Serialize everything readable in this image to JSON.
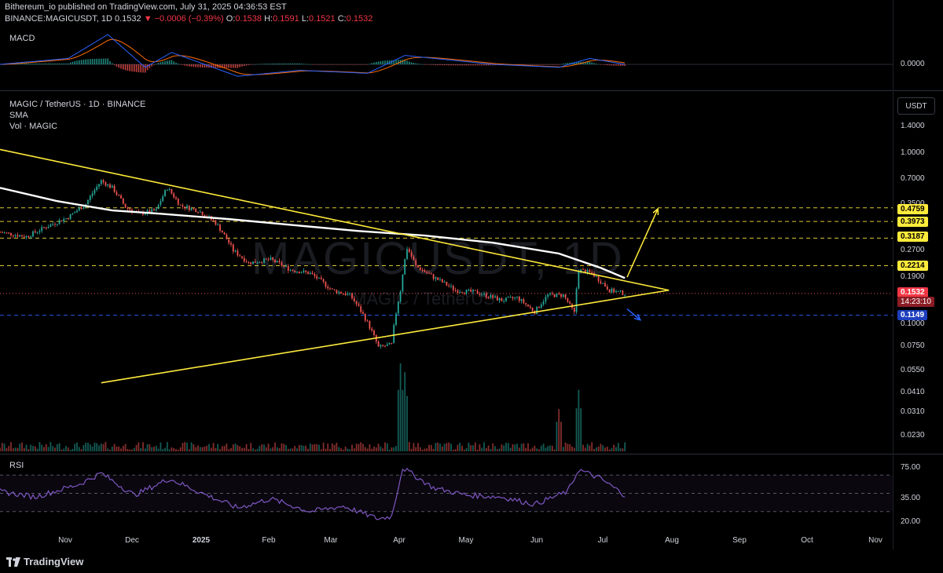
{
  "header": {
    "publish_line": "Bithereum_io published on TradingView.com, July 31, 2025 04:36:53 EST",
    "symbol_line_prefix": "BINANCE:MAGICUSDT, 1D 0.1532",
    "symbol_line_change": "▼ −0.0006 (−0.39%)",
    "ohlc_o_label": " O:",
    "ohlc_o": "0.1538",
    "ohlc_h_label": " H:",
    "ohlc_h": "0.1591",
    "ohlc_l_label": " L:",
    "ohlc_l": "0.1521",
    "ohlc_c_label": " C:",
    "ohlc_c": "0.1532"
  },
  "panes": {
    "macd_label": "MACD",
    "macd_zero": "0.0000",
    "main_title": "MAGIC / TetherUS · 1D · BINANCE",
    "main_sma": "SMA",
    "main_vol": "Vol · MAGIC",
    "currency_button": "USDT",
    "rsi_label": "RSI",
    "watermark_symbol": "MAGICUSDT, 1D",
    "watermark_name": "MAGIC / TetherUS"
  },
  "price_axis": [
    "1.4000",
    "1.0000",
    "0.7000",
    "0.3500",
    "0.2700",
    "0.1900",
    "0.1000",
    "0.0750",
    "0.0550",
    "0.0410",
    "0.0310",
    "0.0230"
  ],
  "rsi_axis": [
    "75.00",
    "35.00",
    "20.00"
  ],
  "price_tags": {
    "level_1": "0.4759",
    "level_2": "0.3973",
    "level_3": "0.3187",
    "level_4": "0.2214",
    "current": "0.1532",
    "countdown": "14:23:10",
    "support": "0.1149"
  },
  "time_axis": [
    "Nov",
    "Dec",
    "2025",
    "Feb",
    "Mar",
    "Apr",
    "May",
    "Jun",
    "Jul",
    "Aug",
    "Sep",
    "Oct",
    "Nov"
  ],
  "footer": {
    "brand": "TradingView"
  },
  "colors": {
    "bull": "#26a69a",
    "bear": "#ef5350",
    "trendline": "#ffeb3b",
    "sma": "#ffffff",
    "macd_line": "#2962ff",
    "signal_line": "#ff6d00",
    "rsi_line": "#7e57c2",
    "support_line": "#2962ff"
  },
  "chart_data": {
    "type": "candlestick",
    "symbol": "MAGICUSDT",
    "timeframe": "1D",
    "y_scale": "log",
    "ylim": [
      0.02,
      1.6
    ],
    "x_range": [
      "2024-10-20",
      "2025-11-15"
    ],
    "price_path": [
      [
        "2024-10-20",
        0.345
      ],
      [
        "2024-11-01",
        0.325
      ],
      [
        "2024-11-10",
        0.37
      ],
      [
        "2024-11-20",
        0.42
      ],
      [
        "2024-11-28",
        0.5
      ],
      [
        "2024-12-05",
        0.68
      ],
      [
        "2024-12-10",
        0.62
      ],
      [
        "2024-12-16",
        0.48
      ],
      [
        "2024-12-22",
        0.44
      ],
      [
        "2024-12-30",
        0.46
      ],
      [
        "2025-01-04",
        0.62
      ],
      [
        "2025-01-10",
        0.49
      ],
      [
        "2025-01-18",
        0.46
      ],
      [
        "2025-01-26",
        0.39
      ],
      [
        "2025-02-03",
        0.27
      ],
      [
        "2025-02-10",
        0.23
      ],
      [
        "2025-02-20",
        0.24
      ],
      [
        "2025-03-01",
        0.21
      ],
      [
        "2025-03-10",
        0.2
      ],
      [
        "2025-03-20",
        0.16
      ],
      [
        "2025-03-28",
        0.15
      ],
      [
        "2025-04-04",
        0.11
      ],
      [
        "2025-04-10",
        0.075
      ],
      [
        "2025-04-16",
        0.078
      ],
      [
        "2025-04-20",
        0.16
      ],
      [
        "2025-04-23",
        0.28
      ],
      [
        "2025-04-27",
        0.22
      ],
      [
        "2025-05-05",
        0.19
      ],
      [
        "2025-05-15",
        0.16
      ],
      [
        "2025-05-25",
        0.155
      ],
      [
        "2025-06-05",
        0.14
      ],
      [
        "2025-06-12",
        0.145
      ],
      [
        "2025-06-20",
        0.12
      ],
      [
        "2025-06-26",
        0.15
      ],
      [
        "2025-07-03",
        0.15
      ],
      [
        "2025-07-08",
        0.118
      ],
      [
        "2025-07-10",
        0.21
      ],
      [
        "2025-07-16",
        0.2
      ],
      [
        "2025-07-24",
        0.16
      ],
      [
        "2025-07-31",
        0.1532
      ]
    ],
    "sma": [
      [
        "2024-10-20",
        0.62
      ],
      [
        "2024-11-15",
        0.52
      ],
      [
        "2024-12-10",
        0.46
      ],
      [
        "2025-01-01",
        0.44
      ],
      [
        "2025-02-01",
        0.41
      ],
      [
        "2025-03-01",
        0.38
      ],
      [
        "2025-04-01",
        0.35
      ],
      [
        "2025-05-01",
        0.33
      ],
      [
        "2025-06-01",
        0.3
      ],
      [
        "2025-07-01",
        0.26
      ],
      [
        "2025-07-20",
        0.215
      ],
      [
        "2025-07-31",
        0.188
      ]
    ],
    "trendline_upper": [
      [
        "2024-10-20",
        1.03
      ],
      [
        "2025-08-20",
        0.16
      ]
    ],
    "trendline_lower": [
      [
        "2024-12-05",
        0.047
      ],
      [
        "2025-08-20",
        0.16
      ]
    ],
    "projection_up": [
      [
        "2025-08-01",
        0.19
      ],
      [
        "2025-08-15",
        0.47
      ]
    ],
    "projection_down": [
      [
        "2025-08-01",
        0.125
      ],
      [
        "2025-08-07",
        0.108
      ]
    ],
    "horizontal_levels": [
      0.4759,
      0.3973,
      0.3187,
      0.2214,
      0.1149
    ],
    "current_price": 0.1532,
    "rsi": {
      "ylim": [
        10,
        90
      ],
      "levels": [
        70,
        50,
        30
      ],
      "path": [
        [
          "2024-10-20",
          52
        ],
        [
          "2024-11-05",
          46
        ],
        [
          "2024-11-25",
          60
        ],
        [
          "2024-12-05",
          72
        ],
        [
          "2024-12-20",
          48
        ],
        [
          "2025-01-05",
          66
        ],
        [
          "2025-01-20",
          50
        ],
        [
          "2025-02-05",
          34
        ],
        [
          "2025-02-20",
          44
        ],
        [
          "2025-03-10",
          30
        ],
        [
          "2025-03-25",
          36
        ],
        [
          "2025-04-10",
          22
        ],
        [
          "2025-04-16",
          25
        ],
        [
          "2025-04-21",
          78
        ],
        [
          "2025-05-05",
          56
        ],
        [
          "2025-05-20",
          48
        ],
        [
          "2025-06-05",
          46
        ],
        [
          "2025-06-20",
          38
        ],
        [
          "2025-07-05",
          52
        ],
        [
          "2025-07-10",
          76
        ],
        [
          "2025-07-20",
          66
        ],
        [
          "2025-07-31",
          48
        ]
      ]
    },
    "macd": {
      "line": [
        [
          "2024-10-20",
          0.0
        ],
        [
          "2024-11-20",
          0.02
        ],
        [
          "2024-12-08",
          0.1
        ],
        [
          "2024-12-25",
          -0.01
        ],
        [
          "2025-01-06",
          0.04
        ],
        [
          "2025-02-05",
          -0.04
        ],
        [
          "2025-03-05",
          -0.02
        ],
        [
          "2025-04-05",
          -0.03
        ],
        [
          "2025-04-22",
          0.03
        ],
        [
          "2025-06-01",
          0.0
        ],
        [
          "2025-07-01",
          -0.01
        ],
        [
          "2025-07-15",
          0.02
        ],
        [
          "2025-07-31",
          0.0
        ]
      ]
    },
    "volume_spikes": [
      [
        "2025-04-20",
        1.0
      ],
      [
        "2025-04-22",
        0.9
      ],
      [
        "2025-07-01",
        0.48
      ],
      [
        "2025-07-10",
        0.7
      ]
    ]
  }
}
